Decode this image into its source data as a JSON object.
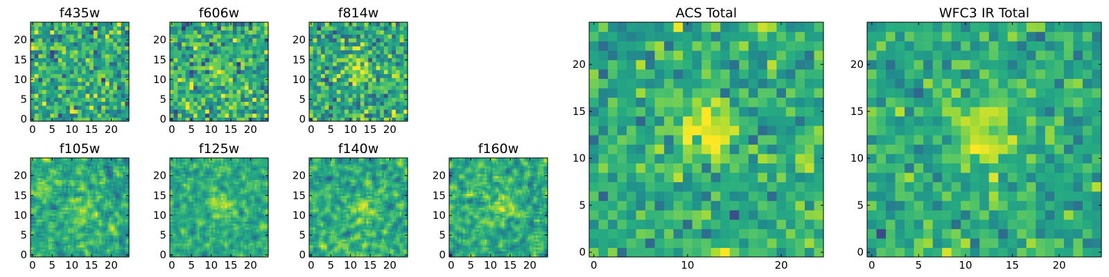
{
  "chart_data": [
    {
      "id": "f435w",
      "type": "heatmap",
      "title": "f435w",
      "x_range": [
        0,
        25
      ],
      "y_range": [
        0,
        25
      ],
      "grid": false,
      "x_ticks": [
        0,
        5,
        10,
        15,
        20
      ],
      "y_ticks": [
        0,
        5,
        10,
        15,
        20
      ],
      "x_tick_labels": [
        "0",
        "5",
        "10",
        "15",
        "20"
      ],
      "y_tick_labels": [
        "0",
        "5",
        "10",
        "15",
        "20"
      ],
      "colormap": "viridis",
      "grid_size": 25,
      "pixels": 25,
      "source_peak": [
        12,
        13
      ],
      "source_strength": 0.15,
      "noise_scale": 1.0,
      "seed": 11
    },
    {
      "id": "f606w",
      "type": "heatmap",
      "title": "f606w",
      "x_range": [
        0,
        25
      ],
      "y_range": [
        0,
        25
      ],
      "grid": false,
      "x_ticks": [
        0,
        5,
        10,
        15,
        20
      ],
      "y_ticks": [
        0,
        5,
        10,
        15,
        20
      ],
      "x_tick_labels": [
        "0",
        "5",
        "10",
        "15",
        "20"
      ],
      "y_tick_labels": [
        "0",
        "5",
        "10",
        "15",
        "20"
      ],
      "colormap": "viridis",
      "grid_size": 25,
      "pixels": 25,
      "source_peak": [
        12,
        12
      ],
      "source_strength": 0.35,
      "noise_scale": 1.0,
      "seed": 23
    },
    {
      "id": "f814w",
      "type": "heatmap",
      "title": "f814w",
      "x_range": [
        0,
        25
      ],
      "y_range": [
        0,
        25
      ],
      "grid": false,
      "x_ticks": [
        0,
        5,
        10,
        15,
        20
      ],
      "y_ticks": [
        0,
        5,
        10,
        15,
        20
      ],
      "x_tick_labels": [
        "0",
        "5",
        "10",
        "15",
        "20"
      ],
      "y_tick_labels": [
        "0",
        "5",
        "10",
        "15",
        "20"
      ],
      "colormap": "viridis",
      "grid_size": 25,
      "pixels": 25,
      "source_peak": [
        13,
        13
      ],
      "source_strength": 0.5,
      "noise_scale": 1.0,
      "seed": 37
    },
    {
      "id": "f105w",
      "type": "heatmap",
      "title": "f105w",
      "x_range": [
        0,
        25
      ],
      "y_range": [
        0,
        25
      ],
      "grid": false,
      "x_ticks": [
        0,
        5,
        10,
        15,
        20
      ],
      "y_ticks": [
        0,
        5,
        10,
        15,
        20
      ],
      "x_tick_labels": [
        "0",
        "5",
        "10",
        "15",
        "20"
      ],
      "y_tick_labels": [
        "0",
        "5",
        "10",
        "15",
        "20"
      ],
      "colormap": "viridis",
      "grid_size": 25,
      "pixels": 50,
      "source_peak": [
        13,
        12
      ],
      "source_strength": 0.45,
      "noise_scale": 1.0,
      "seed": 41
    },
    {
      "id": "f125w",
      "type": "heatmap",
      "title": "f125w",
      "x_range": [
        0,
        25
      ],
      "y_range": [
        0,
        25
      ],
      "grid": false,
      "x_ticks": [
        0,
        5,
        10,
        15,
        20
      ],
      "y_ticks": [
        0,
        5,
        10,
        15,
        20
      ],
      "x_tick_labels": [
        "0",
        "5",
        "10",
        "15",
        "20"
      ],
      "y_tick_labels": [
        "0",
        "5",
        "10",
        "15",
        "20"
      ],
      "colormap": "viridis",
      "grid_size": 25,
      "pixels": 50,
      "source_peak": [
        13,
        12
      ],
      "source_strength": 0.55,
      "noise_scale": 0.9,
      "seed": 53
    },
    {
      "id": "f140w",
      "type": "heatmap",
      "title": "f140w",
      "x_range": [
        0,
        25
      ],
      "y_range": [
        0,
        25
      ],
      "grid": false,
      "x_ticks": [
        0,
        5,
        10,
        15,
        20
      ],
      "y_ticks": [
        0,
        5,
        10,
        15,
        20
      ],
      "x_tick_labels": [
        "0",
        "5",
        "10",
        "15",
        "20"
      ],
      "y_tick_labels": [
        "0",
        "5",
        "10",
        "15",
        "20"
      ],
      "colormap": "viridis",
      "grid_size": 25,
      "pixels": 50,
      "source_peak": [
        13,
        12
      ],
      "source_strength": 0.5,
      "noise_scale": 1.0,
      "seed": 67
    },
    {
      "id": "f160w",
      "type": "heatmap",
      "title": "f160w",
      "x_range": [
        0,
        25
      ],
      "y_range": [
        0,
        25
      ],
      "grid": false,
      "x_ticks": [
        0,
        5,
        10,
        15,
        20
      ],
      "y_ticks": [
        0,
        5,
        10,
        15,
        20
      ],
      "x_tick_labels": [
        "0",
        "5",
        "10",
        "15",
        "20"
      ],
      "y_tick_labels": [
        "0",
        "5",
        "10",
        "15",
        "20"
      ],
      "colormap": "viridis",
      "grid_size": 25,
      "pixels": 50,
      "source_peak": [
        13,
        12
      ],
      "source_strength": 0.55,
      "noise_scale": 1.0,
      "seed": 79
    },
    {
      "id": "acs-total",
      "type": "heatmap",
      "title": "ACS Total",
      "x_range": [
        0,
        25
      ],
      "y_range": [
        0,
        25
      ],
      "grid": false,
      "x_ticks": [
        0,
        10,
        20
      ],
      "y_ticks": [
        0,
        5,
        10,
        15,
        20
      ],
      "x_tick_labels": [
        "0",
        "10",
        "20"
      ],
      "y_tick_labels": [
        "0",
        "5",
        "10",
        "15",
        "20"
      ],
      "colormap": "viridis",
      "grid_size": 25,
      "pixels": 25,
      "source_peak": [
        12,
        13
      ],
      "source_strength": 0.75,
      "noise_scale": 0.8,
      "seed": 97
    },
    {
      "id": "wfc3-ir-total",
      "type": "heatmap",
      "title": "WFC3 IR Total",
      "x_range": [
        0,
        25
      ],
      "y_range": [
        0,
        25
      ],
      "grid": false,
      "x_ticks": [
        0,
        5,
        10,
        15,
        20
      ],
      "y_ticks": [
        0,
        5,
        10,
        15,
        20
      ],
      "x_tick_labels": [
        "0",
        "5",
        "10",
        "15",
        "20"
      ],
      "y_tick_labels": [
        "0",
        "5",
        "10",
        "15",
        "20"
      ],
      "colormap": "viridis",
      "grid_size": 25,
      "pixels": 25,
      "source_peak": [
        12,
        13
      ],
      "source_strength": 0.8,
      "noise_scale": 0.7,
      "seed": 113
    }
  ]
}
